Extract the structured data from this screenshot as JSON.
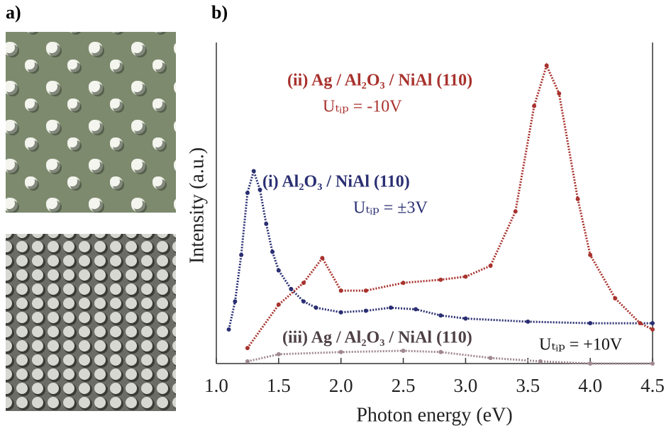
{
  "panel_a": "a)",
  "panel_b": "b)",
  "chart_data": {
    "type": "line",
    "x_label": "Photon energy (eV)",
    "y_label": "Intensity (a.u.)",
    "xlim": [
      1.0,
      4.5
    ],
    "ylim": [
      0,
      10
    ],
    "xticks": [
      {
        "value": 1,
        "label": "1.0"
      },
      1.5,
      {
        "value": 2,
        "label": "2.0"
      },
      2.5,
      {
        "value": 3,
        "label": "3.0"
      },
      3.5,
      {
        "value": 4,
        "label": "4.0"
      },
      4.5
    ],
    "series": [
      {
        "name": "(i) Al₂O₃ / NiAl (110)",
        "color": "#2a2f72",
        "annotation": "Uₜᵢₚ = ±3V",
        "x": [
          1.1,
          1.15,
          1.2,
          1.25,
          1.3,
          1.35,
          1.4,
          1.45,
          1.5,
          1.6,
          1.7,
          1.8,
          2.0,
          2.2,
          2.4,
          2.6,
          2.8,
          3.0,
          3.5,
          4.0,
          4.5
        ],
        "values": [
          1.1,
          2.0,
          3.5,
          5.5,
          6.2,
          5.6,
          4.5,
          3.6,
          3.0,
          2.4,
          2.0,
          1.8,
          1.65,
          1.7,
          1.8,
          1.75,
          1.55,
          1.45,
          1.35,
          1.3,
          1.3
        ]
      },
      {
        "name": "(ii) Ag / Al₂O₃ / NiAl (110)",
        "color": "#a8322d",
        "annotation": "Uₜᵢₚ = -10V",
        "x": [
          1.25,
          1.5,
          1.7,
          1.85,
          2.0,
          2.2,
          2.5,
          2.8,
          3.0,
          3.2,
          3.4,
          3.55,
          3.65,
          3.75,
          3.9,
          4.0,
          4.2,
          4.4,
          4.5
        ],
        "values": [
          0.5,
          1.9,
          2.6,
          3.4,
          2.35,
          2.35,
          2.6,
          2.7,
          2.8,
          3.15,
          4.9,
          8.3,
          9.6,
          8.7,
          5.3,
          3.5,
          2.1,
          1.3,
          1.1
        ]
      },
      {
        "name": "(iii) Ag / Al₂O₃ / NiAl (110)",
        "color": "#a08890",
        "annotation": "Uₜᵢₚ = +10V",
        "x": [
          1.25,
          1.5,
          2.0,
          2.5,
          2.8,
          3.2,
          3.6,
          4.0,
          4.5
        ],
        "values": [
          0.07,
          0.3,
          0.37,
          0.41,
          0.37,
          0.18,
          0.07,
          0,
          0
        ]
      }
    ]
  }
}
